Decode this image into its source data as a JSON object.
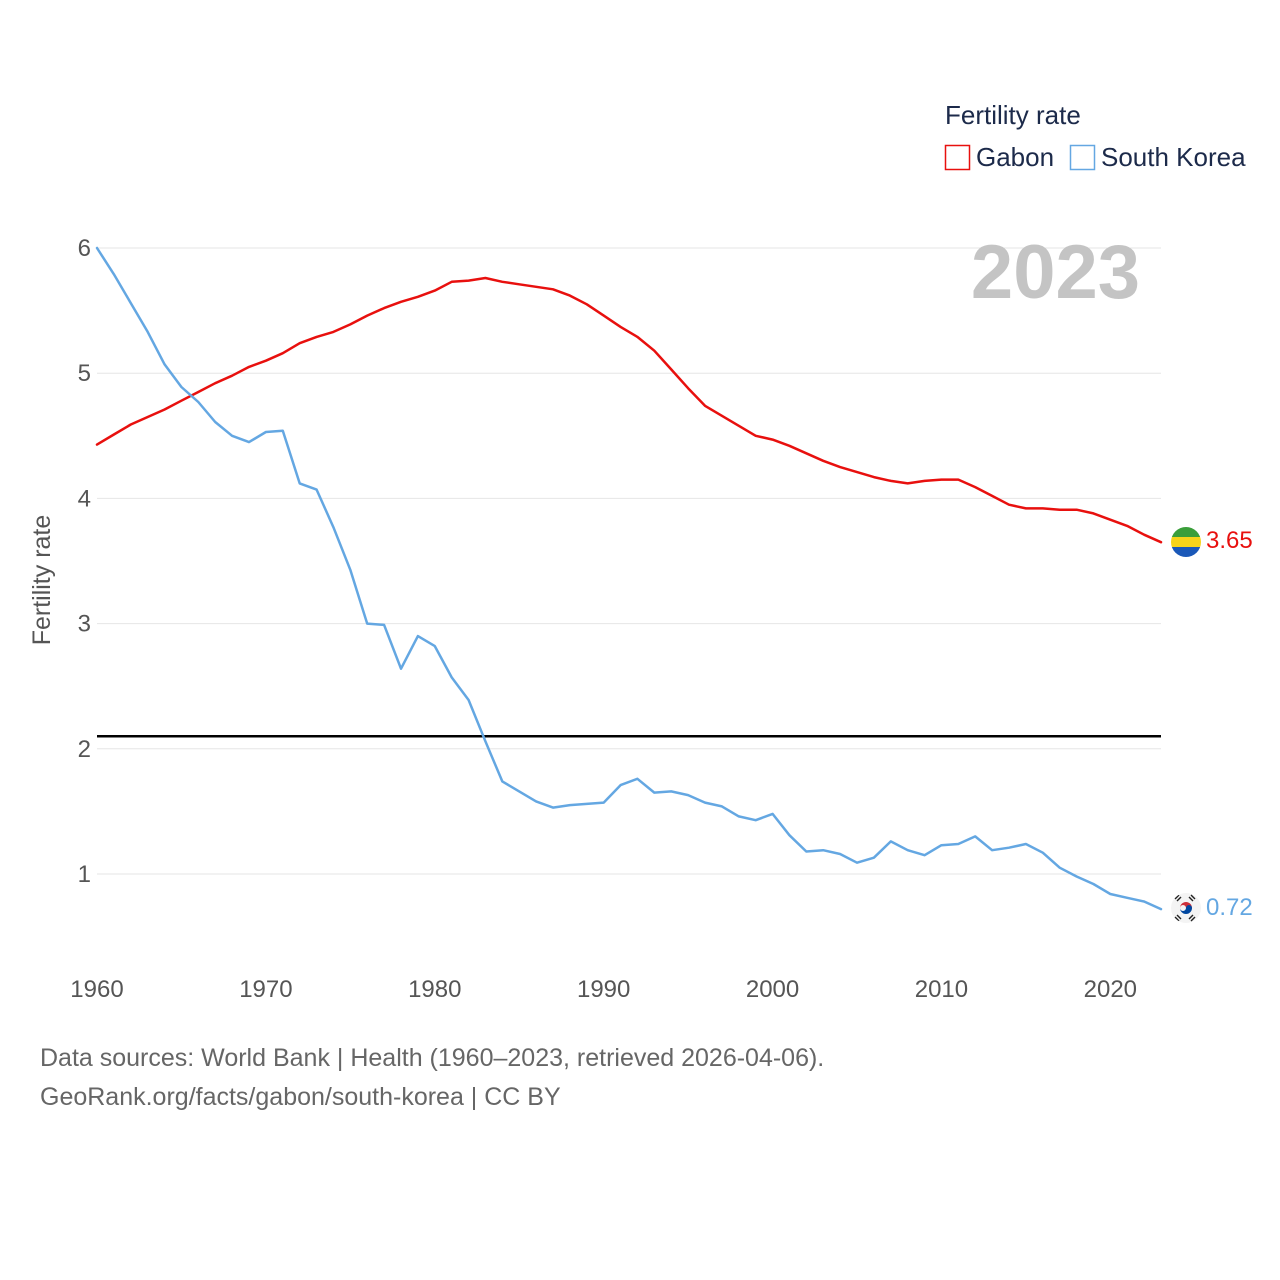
{
  "chart_data": {
    "type": "line",
    "title": "",
    "ylabel": "Fertility rate",
    "xlabel": "",
    "year_label": "2023",
    "xlim": [
      1960,
      2023
    ],
    "ylim": [
      0.35,
      6.1
    ],
    "xticks": [
      1960,
      1970,
      1980,
      1990,
      2000,
      2010,
      2020
    ],
    "yticks": [
      1,
      2,
      3,
      4,
      5,
      6
    ],
    "grid": true,
    "legend": {
      "title": "Fertility rate",
      "position": "top-right"
    },
    "reference_line": {
      "value": 2.1,
      "color": "#000000"
    },
    "x": [
      1960,
      1961,
      1962,
      1963,
      1964,
      1965,
      1966,
      1967,
      1968,
      1969,
      1970,
      1971,
      1972,
      1973,
      1974,
      1975,
      1976,
      1977,
      1978,
      1979,
      1980,
      1981,
      1982,
      1983,
      1984,
      1985,
      1986,
      1987,
      1988,
      1989,
      1990,
      1991,
      1992,
      1993,
      1994,
      1995,
      1996,
      1997,
      1998,
      1999,
      2000,
      2001,
      2002,
      2003,
      2004,
      2005,
      2006,
      2007,
      2008,
      2009,
      2010,
      2011,
      2012,
      2013,
      2014,
      2015,
      2016,
      2017,
      2018,
      2019,
      2020,
      2021,
      2022,
      2023
    ],
    "series": [
      {
        "name": "Gabon",
        "color": "#e8100e",
        "end_label": "3.65",
        "values": [
          4.43,
          4.51,
          4.59,
          4.65,
          4.71,
          4.78,
          4.85,
          4.92,
          4.98,
          5.05,
          5.1,
          5.16,
          5.24,
          5.29,
          5.33,
          5.39,
          5.46,
          5.52,
          5.57,
          5.61,
          5.66,
          5.73,
          5.74,
          5.76,
          5.73,
          5.71,
          5.69,
          5.67,
          5.62,
          5.55,
          5.46,
          5.37,
          5.29,
          5.18,
          5.03,
          4.88,
          4.74,
          4.66,
          4.58,
          4.5,
          4.47,
          4.42,
          4.36,
          4.3,
          4.25,
          4.21,
          4.17,
          4.14,
          4.12,
          4.14,
          4.15,
          4.15,
          4.09,
          4.02,
          3.95,
          3.92,
          3.92,
          3.91,
          3.91,
          3.88,
          3.83,
          3.78,
          3.71,
          3.65
        ]
      },
      {
        "name": "South Korea",
        "color": "#64a7e2",
        "end_label": "0.72",
        "values": [
          6.0,
          5.79,
          5.56,
          5.33,
          5.07,
          4.89,
          4.77,
          4.61,
          4.5,
          4.45,
          4.53,
          4.54,
          4.12,
          4.07,
          3.77,
          3.43,
          3.0,
          2.99,
          2.64,
          2.9,
          2.82,
          2.57,
          2.39,
          2.06,
          1.74,
          1.66,
          1.58,
          1.53,
          1.55,
          1.56,
          1.57,
          1.71,
          1.76,
          1.65,
          1.66,
          1.63,
          1.57,
          1.54,
          1.46,
          1.43,
          1.48,
          1.31,
          1.18,
          1.19,
          1.16,
          1.09,
          1.13,
          1.26,
          1.19,
          1.15,
          1.23,
          1.24,
          1.3,
          1.19,
          1.21,
          1.24,
          1.17,
          1.05,
          0.98,
          0.92,
          0.84,
          0.81,
          0.78,
          0.72
        ]
      }
    ]
  },
  "footer": {
    "line1": "Data sources: World Bank | Health (1960–2023, retrieved 2026-04-06).",
    "line2": "GeoRank.org/facts/gabon/south-korea | CC BY"
  }
}
